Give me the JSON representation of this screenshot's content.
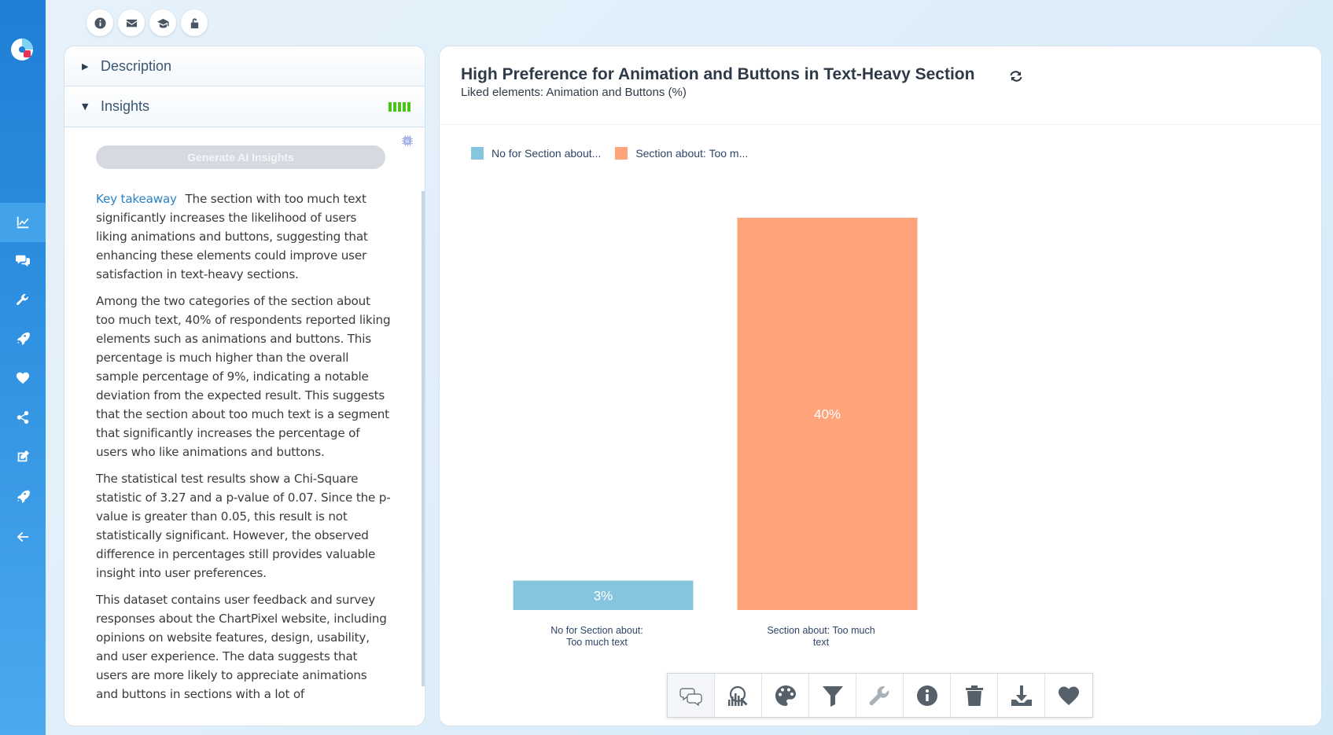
{
  "sidebar": {
    "items": [
      {
        "icon": "chart-line-icon",
        "active": true
      },
      {
        "icon": "comments-icon",
        "active": false
      },
      {
        "icon": "wrench-icon",
        "active": false
      },
      {
        "icon": "rocket-icon",
        "active": false
      },
      {
        "icon": "heart-icon",
        "active": false
      },
      {
        "icon": "share-icon",
        "active": false
      },
      {
        "icon": "edit-icon",
        "active": false
      },
      {
        "icon": "rocket-icon",
        "active": false
      },
      {
        "icon": "arrow-left-icon",
        "active": false
      }
    ]
  },
  "top_buttons": [
    "info-icon",
    "envelope-icon",
    "graduation-cap-icon",
    "unlock-icon"
  ],
  "left_panel": {
    "description_label": "Description",
    "insights_label": "Insights",
    "generate_button": "Generate AI Insights",
    "key_takeaway_label": "Key takeaway",
    "key_takeaway_text": "The section with too much text significantly increases the likelihood of users liking animations and buttons, suggesting that enhancing these elements could improve user satisfaction in text-heavy sections.",
    "paragraph_1": "Among the two categories of the section about too much text, 40% of respondents reported liking elements such as animations and buttons. This percentage is much higher than the overall sample percentage of 9%, indicating a notable deviation from the expected result. This suggests that the section about too much text is a segment that significantly increases the percentage of users who like animations and buttons.",
    "paragraph_2": "The statistical test results show a Chi-Square statistic of 3.27 and a p-value of 0.07. Since the p-value is greater than 0.05, this result is not statistically significant. However, the observed difference in percentages still provides valuable insight into user preferences.",
    "paragraph_3": "This dataset contains user feedback and survey responses about the ChartPixel website, including opinions on website features, design, usability, and user experience. The data suggests that users are more likely to appreciate animations and buttons in sections with a lot of"
  },
  "chart_panel": {
    "title": "High Preference for Animation and Buttons in Text-Heavy Section",
    "subtitle": "Liked elements: Animation and Buttons (%)"
  },
  "chart_data": {
    "type": "bar",
    "title": "High Preference for Animation and Buttons in Text-Heavy Section",
    "subtitle": "Liked elements: Animation and Buttons (%)",
    "categories": [
      "No for Section about: Too much text",
      "Section about: Too much text"
    ],
    "category_lines": [
      [
        "No for Section about:",
        "Too much text"
      ],
      [
        "Section about: Too much",
        "text"
      ]
    ],
    "values": [
      3,
      40
    ],
    "data_labels": [
      "3%",
      "40%"
    ],
    "colors": [
      "#86c5de",
      "#ffa37a"
    ],
    "legend": [
      "No for Section about...",
      "Section about: Too m..."
    ],
    "legend_position": "top-left",
    "ylim": [
      0,
      40
    ],
    "grid": false
  },
  "toolbar": {
    "buttons": [
      "comments-icon",
      "magnify-chart-icon",
      "palette-icon",
      "filter-icon",
      "wrench-icon",
      "info-icon",
      "trash-icon",
      "download-icon",
      "heart-icon"
    ]
  }
}
